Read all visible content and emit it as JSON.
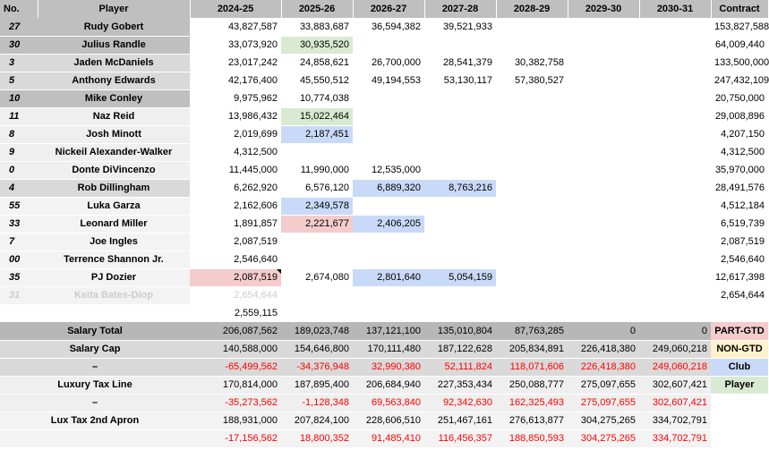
{
  "headers": [
    "No.",
    "Player",
    "2024-25",
    "2025-26",
    "2026-27",
    "2027-28",
    "2028-29",
    "2029-30",
    "2030-31",
    "Contract"
  ],
  "players": [
    {
      "no": "27",
      "name": "Rudy Gobert",
      "s": [
        "43,827,587",
        "33,883,687",
        "36,594,382",
        "39,521,933",
        "",
        "",
        ""
      ],
      "c": [
        "",
        "",
        "",
        "",
        "",
        "",
        ""
      ],
      "contract": "153,827,588"
    },
    {
      "no": "30",
      "name": "Julius Randle",
      "s": [
        "33,073,920",
        "30,935,520",
        "",
        "",
        "",
        "",
        ""
      ],
      "c": [
        "",
        "player",
        "",
        "",
        "",
        "",
        ""
      ],
      "contract": "64,009,440"
    },
    {
      "no": "3",
      "name": "Jaden McDaniels",
      "s": [
        "23,017,242",
        "24,858,621",
        "26,700,000",
        "28,541,379",
        "30,382,758",
        "",
        ""
      ],
      "c": [
        "",
        "",
        "",
        "",
        "",
        "",
        ""
      ],
      "contract": "133,500,000"
    },
    {
      "no": "5",
      "name": "Anthony Edwards",
      "s": [
        "42,176,400",
        "45,550,512",
        "49,194,553",
        "53,130,117",
        "57,380,527",
        "",
        ""
      ],
      "c": [
        "",
        "",
        "",
        "",
        "",
        "",
        ""
      ],
      "contract": "247,432,109"
    },
    {
      "no": "10",
      "name": "Mike Conley",
      "s": [
        "9,975,962",
        "10,774,038",
        "",
        "",
        "",
        "",
        ""
      ],
      "c": [
        "",
        "",
        "",
        "",
        "",
        "",
        ""
      ],
      "contract": "20,750,000"
    },
    {
      "no": "11",
      "name": "Naz Reid",
      "s": [
        "13,986,432",
        "15,022,464",
        "",
        "",
        "",
        "",
        ""
      ],
      "c": [
        "",
        "player",
        "",
        "",
        "",
        "",
        ""
      ],
      "contract": "29,008,896"
    },
    {
      "no": "8",
      "name": "Josh Minott",
      "s": [
        "2,019,699",
        "2,187,451",
        "",
        "",
        "",
        "",
        ""
      ],
      "c": [
        "",
        "club",
        "",
        "",
        "",
        "",
        ""
      ],
      "contract": "4,207,150"
    },
    {
      "no": "9",
      "name": "Nickeil Alexander-Walker",
      "s": [
        "4,312,500",
        "",
        "",
        "",
        "",
        "",
        ""
      ],
      "c": [
        "",
        "",
        "",
        "",
        "",
        "",
        ""
      ],
      "contract": "4,312,500"
    },
    {
      "no": "0",
      "name": "Donte DiVincenzo",
      "s": [
        "11,445,000",
        "11,990,000",
        "12,535,000",
        "",
        "",
        "",
        ""
      ],
      "c": [
        "",
        "",
        "",
        "",
        "",
        "",
        ""
      ],
      "contract": "35,970,000"
    },
    {
      "no": "4",
      "name": "Rob Dillingham",
      "s": [
        "6,262,920",
        "6,576,120",
        "6,889,320",
        "8,763,216",
        "",
        "",
        ""
      ],
      "c": [
        "",
        "",
        "club",
        "club",
        "",
        "",
        ""
      ],
      "contract": "28,491,576"
    },
    {
      "no": "55",
      "name": "Luka Garza",
      "s": [
        "2,162,606",
        "2,349,578",
        "",
        "",
        "",
        "",
        ""
      ],
      "c": [
        "",
        "club",
        "",
        "",
        "",
        "",
        ""
      ],
      "contract": "4,512,184"
    },
    {
      "no": "33",
      "name": "Leonard Miller",
      "s": [
        "1,891,857",
        "2,221,677",
        "2,406,205",
        "",
        "",
        "",
        ""
      ],
      "c": [
        "",
        "part",
        "club",
        "",
        "",
        "",
        ""
      ],
      "contract": "6,519,739"
    },
    {
      "no": "7",
      "name": "Joe Ingles",
      "s": [
        "2,087,519",
        "",
        "",
        "",
        "",
        "",
        ""
      ],
      "c": [
        "",
        "",
        "",
        "",
        "",
        "",
        ""
      ],
      "contract": "2,087,519"
    },
    {
      "no": "00",
      "name": "Terrence Shannon Jr.",
      "s": [
        "2,546,640",
        "",
        "",
        "",
        "",
        "",
        ""
      ],
      "c": [
        "",
        "",
        "",
        "",
        "",
        "",
        ""
      ],
      "contract": "2,546,640"
    },
    {
      "no": "35",
      "name": "PJ Dozier",
      "s": [
        "2,087,519",
        "2,674,080",
        "2,801,640",
        "5,054,159",
        "",
        "",
        ""
      ],
      "c": [
        "part",
        "",
        "club",
        "club",
        "",
        "",
        ""
      ],
      "contract": "12,617,398"
    },
    {
      "no": "31",
      "name": "Keita Bates-Diop",
      "s": [
        "2,654,644",
        "",
        "",
        "",
        "",
        "",
        ""
      ],
      "c": [
        "",
        "",
        "",
        "",
        "",
        "",
        ""
      ],
      "contract": "2,654,644"
    }
  ],
  "extra_value": "2,559,115",
  "salary_total": {
    "label": "Salary Total",
    "values": [
      "206,087,562",
      "189,023,748",
      "137,121,100",
      "135,010,804",
      "87,763,285",
      "0",
      "0"
    ]
  },
  "salary_cap": {
    "label": "Salary Cap",
    "values": [
      "140,588,000",
      "154,646,800",
      "170,111,480",
      "187,122,628",
      "205,834,891",
      "226,418,380",
      "249,060,218"
    ]
  },
  "cap_diff": {
    "label": "–",
    "values": [
      "-65,499,562",
      "-34,376,948",
      "32,990,380",
      "52,111,824",
      "118,071,606",
      "226,418,380",
      "249,060,218"
    ]
  },
  "tax_line": {
    "label": "Luxury Tax Line",
    "values": [
      "170,814,000",
      "187,895,400",
      "206,684,940",
      "227,353,434",
      "250,088,777",
      "275,097,655",
      "302,607,421"
    ]
  },
  "tax_diff": {
    "label": "–",
    "values": [
      "-35,273,562",
      "-1,128,348",
      "69,563,840",
      "92,342,630",
      "162,325,493",
      "275,097,655",
      "302,607,421"
    ]
  },
  "apron": {
    "label": "Lux Tax 2nd Apron",
    "values": [
      "188,931,000",
      "207,824,100",
      "228,606,510",
      "251,467,161",
      "276,613,877",
      "304,275,265",
      "334,702,791"
    ]
  },
  "apron_diff": {
    "values": [
      "-17,156,562",
      "18,800,352",
      "91,485,410",
      "116,456,357",
      "188,850,593",
      "304,275,265",
      "334,702,791"
    ]
  },
  "legend": {
    "part": "PART-GTD",
    "nongtd": "NON-GTD",
    "club": "Club",
    "player": "Player"
  },
  "colors": {
    "part": "#f4cccc",
    "nongtd": "#fff2cc",
    "club": "#c9daf8",
    "player": "#d9ead3",
    "negative": "#ff0000"
  }
}
